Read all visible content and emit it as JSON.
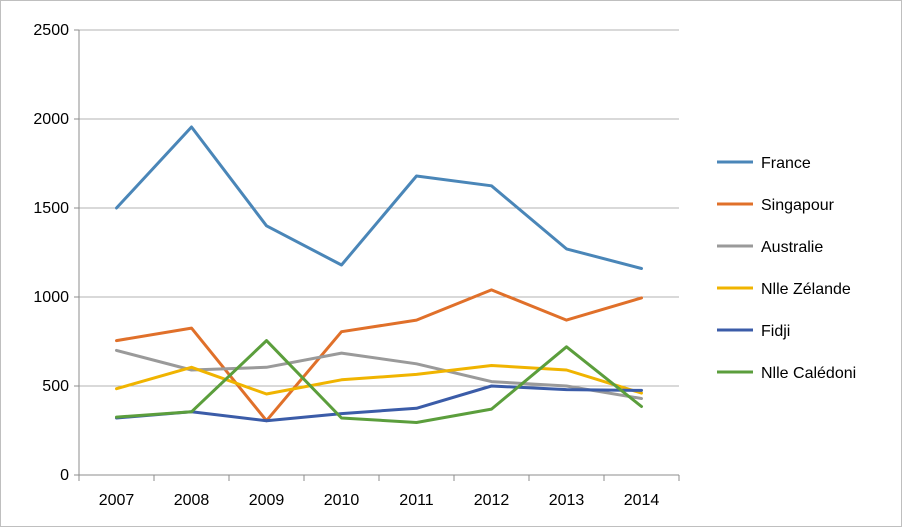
{
  "chart_data": {
    "type": "line",
    "categories": [
      "2007",
      "2008",
      "2009",
      "2010",
      "2011",
      "2012",
      "2013",
      "2014"
    ],
    "ylim": [
      0,
      2500
    ],
    "yticks": [
      0,
      500,
      1000,
      1500,
      2000,
      2500
    ],
    "grid": true,
    "legend_position": "right",
    "series": [
      {
        "name": "France",
        "color": "#4a86b8",
        "values": [
          1500,
          1955,
          1400,
          1180,
          1680,
          1625,
          1270,
          1160
        ]
      },
      {
        "name": "Singapour",
        "color": "#e0702a",
        "values": [
          755,
          825,
          305,
          805,
          870,
          1040,
          870,
          995
        ]
      },
      {
        "name": "Australie",
        "color": "#9a9a9a",
        "values": [
          700,
          590,
          605,
          685,
          625,
          525,
          500,
          430
        ]
      },
      {
        "name": "Nlle Zélande",
        "color": "#f0b400",
        "values": [
          485,
          605,
          455,
          535,
          565,
          615,
          590,
          460
        ]
      },
      {
        "name": "Fidji",
        "color": "#3b5ca8",
        "values": [
          320,
          355,
          305,
          345,
          375,
          500,
          480,
          475
        ]
      },
      {
        "name": "Nlle Calédoni",
        "color": "#5b9e3c",
        "values": [
          325,
          355,
          755,
          320,
          295,
          370,
          720,
          385
        ]
      }
    ]
  }
}
